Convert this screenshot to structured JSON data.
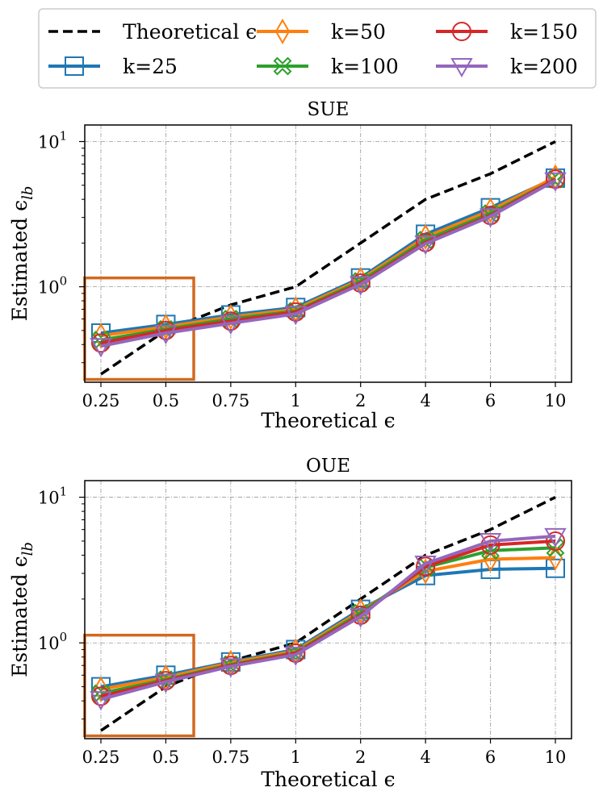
{
  "legend": {
    "location": "top-center",
    "entries": [
      {
        "label": "Theoretical ϵ",
        "color": "#000000",
        "marker": "none",
        "style": "dashed"
      },
      {
        "label": "k=25",
        "color": "#1f77b4",
        "marker": "square",
        "style": "solid"
      },
      {
        "label": "k=50",
        "color": "#ff7f0e",
        "marker": "thin-diamond",
        "style": "solid"
      },
      {
        "label": "k=100",
        "color": "#2ca02c",
        "marker": "x-filled",
        "style": "solid"
      },
      {
        "label": "k=150",
        "color": "#d62728",
        "marker": "circle",
        "style": "solid"
      },
      {
        "label": "k=200",
        "color": "#9467bd",
        "marker": "triangle-down",
        "style": "solid"
      }
    ]
  },
  "highlight_color": "#d2691e",
  "chart_data": [
    {
      "type": "line",
      "title": "SUE",
      "xlabel": "Theoretical ϵ",
      "ylabel": "Estimated ϵ",
      "ylabel_sub": "lb",
      "yscale": "log",
      "ylim": [
        0.22,
        13
      ],
      "ytick_labels": [
        {
          "base": "10",
          "exp": "1",
          "value": 10
        },
        {
          "base": "10",
          "exp": "0",
          "value": 1
        }
      ],
      "categories": [
        "0.25",
        "0.5",
        "0.75",
        "1",
        "2",
        "4",
        "6",
        "10"
      ],
      "highlight_range": {
        "from": "0.25",
        "to": "0.5",
        "ymin": 0.23,
        "ymax": 1.15
      },
      "grid": true,
      "series": [
        {
          "name": "Theoretical ϵ",
          "values": [
            0.25,
            0.5,
            0.75,
            1,
            2,
            4,
            6,
            10
          ]
        },
        {
          "name": "k=25",
          "values": [
            0.48,
            0.55,
            0.64,
            0.72,
            1.15,
            2.3,
            3.5,
            5.6
          ]
        },
        {
          "name": "k=50",
          "values": [
            0.46,
            0.53,
            0.62,
            0.7,
            1.12,
            2.2,
            3.35,
            5.7
          ]
        },
        {
          "name": "k=100",
          "values": [
            0.43,
            0.51,
            0.6,
            0.68,
            1.09,
            2.1,
            3.2,
            5.5
          ]
        },
        {
          "name": "k=150",
          "values": [
            0.41,
            0.5,
            0.58,
            0.67,
            1.06,
            2.02,
            3.1,
            5.5
          ]
        },
        {
          "name": "k=200",
          "values": [
            0.39,
            0.48,
            0.56,
            0.65,
            1.04,
            1.98,
            3.05,
            5.4
          ]
        }
      ]
    },
    {
      "type": "line",
      "title": "OUE",
      "xlabel": "Theoretical ϵ",
      "ylabel": "Estimated ϵ",
      "ylabel_sub": "lb",
      "yscale": "log",
      "ylim": [
        0.22,
        13
      ],
      "ytick_labels": [
        {
          "base": "10",
          "exp": "1",
          "value": 10
        },
        {
          "base": "10",
          "exp": "0",
          "value": 1
        }
      ],
      "categories": [
        "0.25",
        "0.5",
        "0.75",
        "1",
        "2",
        "4",
        "6",
        "10"
      ],
      "highlight_range": {
        "from": "0.25",
        "to": "0.5",
        "ymin": 0.23,
        "ymax": 1.13
      },
      "grid": true,
      "series": [
        {
          "name": "Theoretical ϵ",
          "values": [
            0.25,
            0.5,
            0.75,
            1,
            2,
            4,
            6,
            10
          ]
        },
        {
          "name": "k=25",
          "values": [
            0.5,
            0.6,
            0.74,
            0.9,
            1.7,
            2.9,
            3.2,
            3.25
          ]
        },
        {
          "name": "k=50",
          "values": [
            0.48,
            0.58,
            0.73,
            0.88,
            1.65,
            3.1,
            3.75,
            3.85
          ]
        },
        {
          "name": "k=100",
          "values": [
            0.45,
            0.56,
            0.71,
            0.86,
            1.6,
            3.3,
            4.3,
            4.5
          ]
        },
        {
          "name": "k=150",
          "values": [
            0.43,
            0.55,
            0.7,
            0.85,
            1.55,
            3.35,
            4.7,
            5.0
          ]
        },
        {
          "name": "k=200",
          "values": [
            0.41,
            0.54,
            0.69,
            0.83,
            1.52,
            3.5,
            5.0,
            5.4
          ]
        }
      ]
    }
  ]
}
